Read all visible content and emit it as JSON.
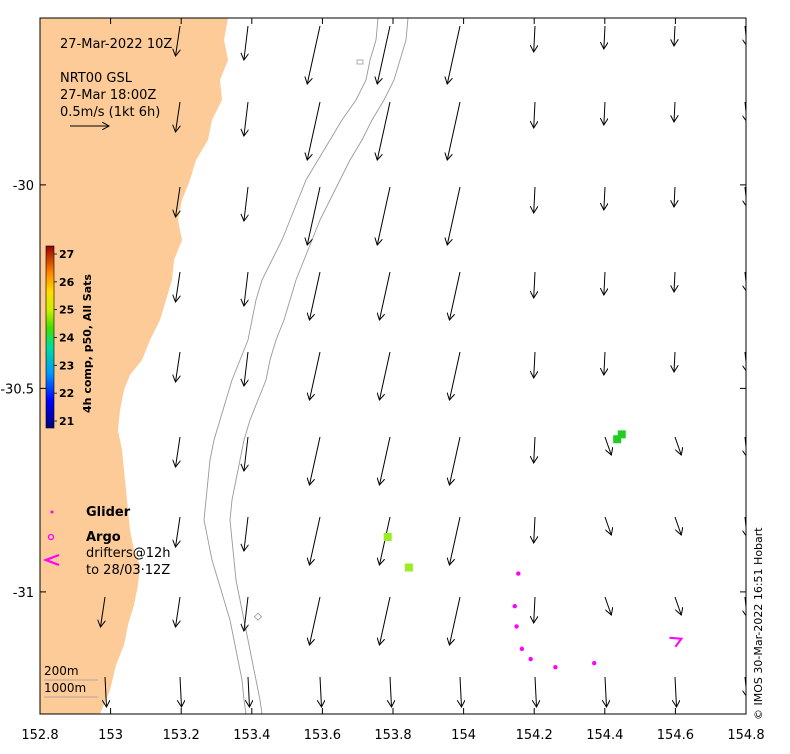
{
  "map": {
    "timestamp": "27-Mar-2022 10Z",
    "current_source": "NRT00 GSL",
    "current_time": "27-Mar 18:00Z",
    "scale_label": "0.5m/s (1kt 6h)",
    "x_axis": {
      "ticks": [
        "152.8",
        "153",
        "153.2",
        "153.4",
        "153.6",
        "153.8",
        "154",
        "154.2",
        "154.4",
        "154.6",
        "154.8"
      ],
      "range": [
        152.8,
        154.8
      ]
    },
    "y_axis": {
      "ticks": [
        "-30",
        "-30.5",
        "-31"
      ],
      "range": [
        -31.3,
        -29.59
      ]
    },
    "colorbar": {
      "label": "4h comp, p50, All Sats",
      "ticks": [
        "21",
        "22",
        "23",
        "24",
        "25",
        "26",
        "27"
      ],
      "range": [
        21,
        27
      ]
    },
    "legend": {
      "glider": "Glider",
      "argo": "Argo",
      "drifters_line1": "drifters@12h",
      "drifters_line2": "to 28/03·12Z"
    },
    "isobaths": [
      "200m",
      "1000m"
    ],
    "credit": "© IMOS 30-Mar-2022 16:51 Hobart",
    "colors": {
      "land": "#fdcb97",
      "drifter": "#ff00ff",
      "sst_cells_24": "#22cc22",
      "sst_cells_25": "#99ee22"
    },
    "sst_cells": [
      {
        "lon": 154.435,
        "lat": -30.625,
        "value": 24
      },
      {
        "lon": 154.448,
        "lat": -30.613,
        "value": 24
      },
      {
        "lon": 153.785,
        "lat": -30.865,
        "value": 25
      },
      {
        "lon": 153.845,
        "lat": -30.94,
        "value": 25
      }
    ],
    "drifter_track": [
      {
        "lon": 154.155,
        "lat": -30.955
      },
      {
        "lon": 154.145,
        "lat": -31.035
      },
      {
        "lon": 154.15,
        "lat": -31.085
      },
      {
        "lon": 154.165,
        "lat": -31.14
      },
      {
        "lon": 154.19,
        "lat": -31.165
      },
      {
        "lon": 154.26,
        "lat": -31.185
      },
      {
        "lon": 154.37,
        "lat": -31.175
      },
      {
        "lon": 154.6,
        "lat": -31.12
      }
    ]
  }
}
